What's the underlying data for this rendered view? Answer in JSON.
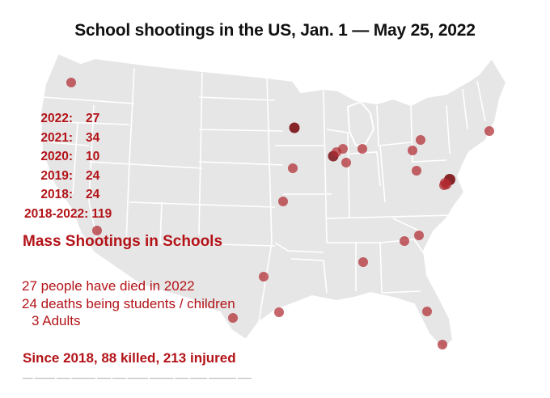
{
  "title": "School shootings in the US, Jan. 1 — May 25, 2022",
  "stats": [
    {
      "year": "2022:",
      "count": "27"
    },
    {
      "year": "2021:",
      "count": "34"
    },
    {
      "year": "2020:",
      "count": "10"
    },
    {
      "year": "2019:",
      "count": "24"
    },
    {
      "year": "2018:",
      "count": "24"
    },
    {
      "year": "2018-2022:",
      "count": "119"
    }
  ],
  "heading": "Mass Shootings in Schools",
  "facts": {
    "died": "27 people have died in 2022",
    "students": "24 deaths being students / children",
    "adults": "3 Adults"
  },
  "summary": "Since 2018, 88 killed, 213 injured",
  "colors": {
    "marker": "#b02a30",
    "marker_dark": "#7a0f14",
    "text_accent": "#b31318",
    "land": "#e6e6e6",
    "borders": "#ffffff"
  },
  "map": {
    "region": "contiguous United States",
    "markers": [
      {
        "place": "Washington"
      },
      {
        "place": "Southern California"
      },
      {
        "place": "Wisconsin"
      },
      {
        "place": "Iowa"
      },
      {
        "place": "Illinois (Chicago)"
      },
      {
        "place": "Illinois (Chicago, 2)"
      },
      {
        "place": "Indiana"
      },
      {
        "place": "Indiana (2)"
      },
      {
        "place": "Michigan"
      },
      {
        "place": "Ohio"
      },
      {
        "place": "New York"
      },
      {
        "place": "Pennsylvania"
      },
      {
        "place": "West Virginia"
      },
      {
        "place": "Maryland"
      },
      {
        "place": "Maryland (2)"
      },
      {
        "place": "Virginia"
      },
      {
        "place": "Massachusetts"
      },
      {
        "place": "Missouri"
      },
      {
        "place": "South Carolina"
      },
      {
        "place": "North Carolina"
      },
      {
        "place": "Alabama"
      },
      {
        "place": "Texas (Dallas)"
      },
      {
        "place": "Texas (Houston)"
      },
      {
        "place": "Texas (Uvalde)"
      },
      {
        "place": "Florida (Orlando)"
      },
      {
        "place": "Florida (South)"
      }
    ]
  }
}
